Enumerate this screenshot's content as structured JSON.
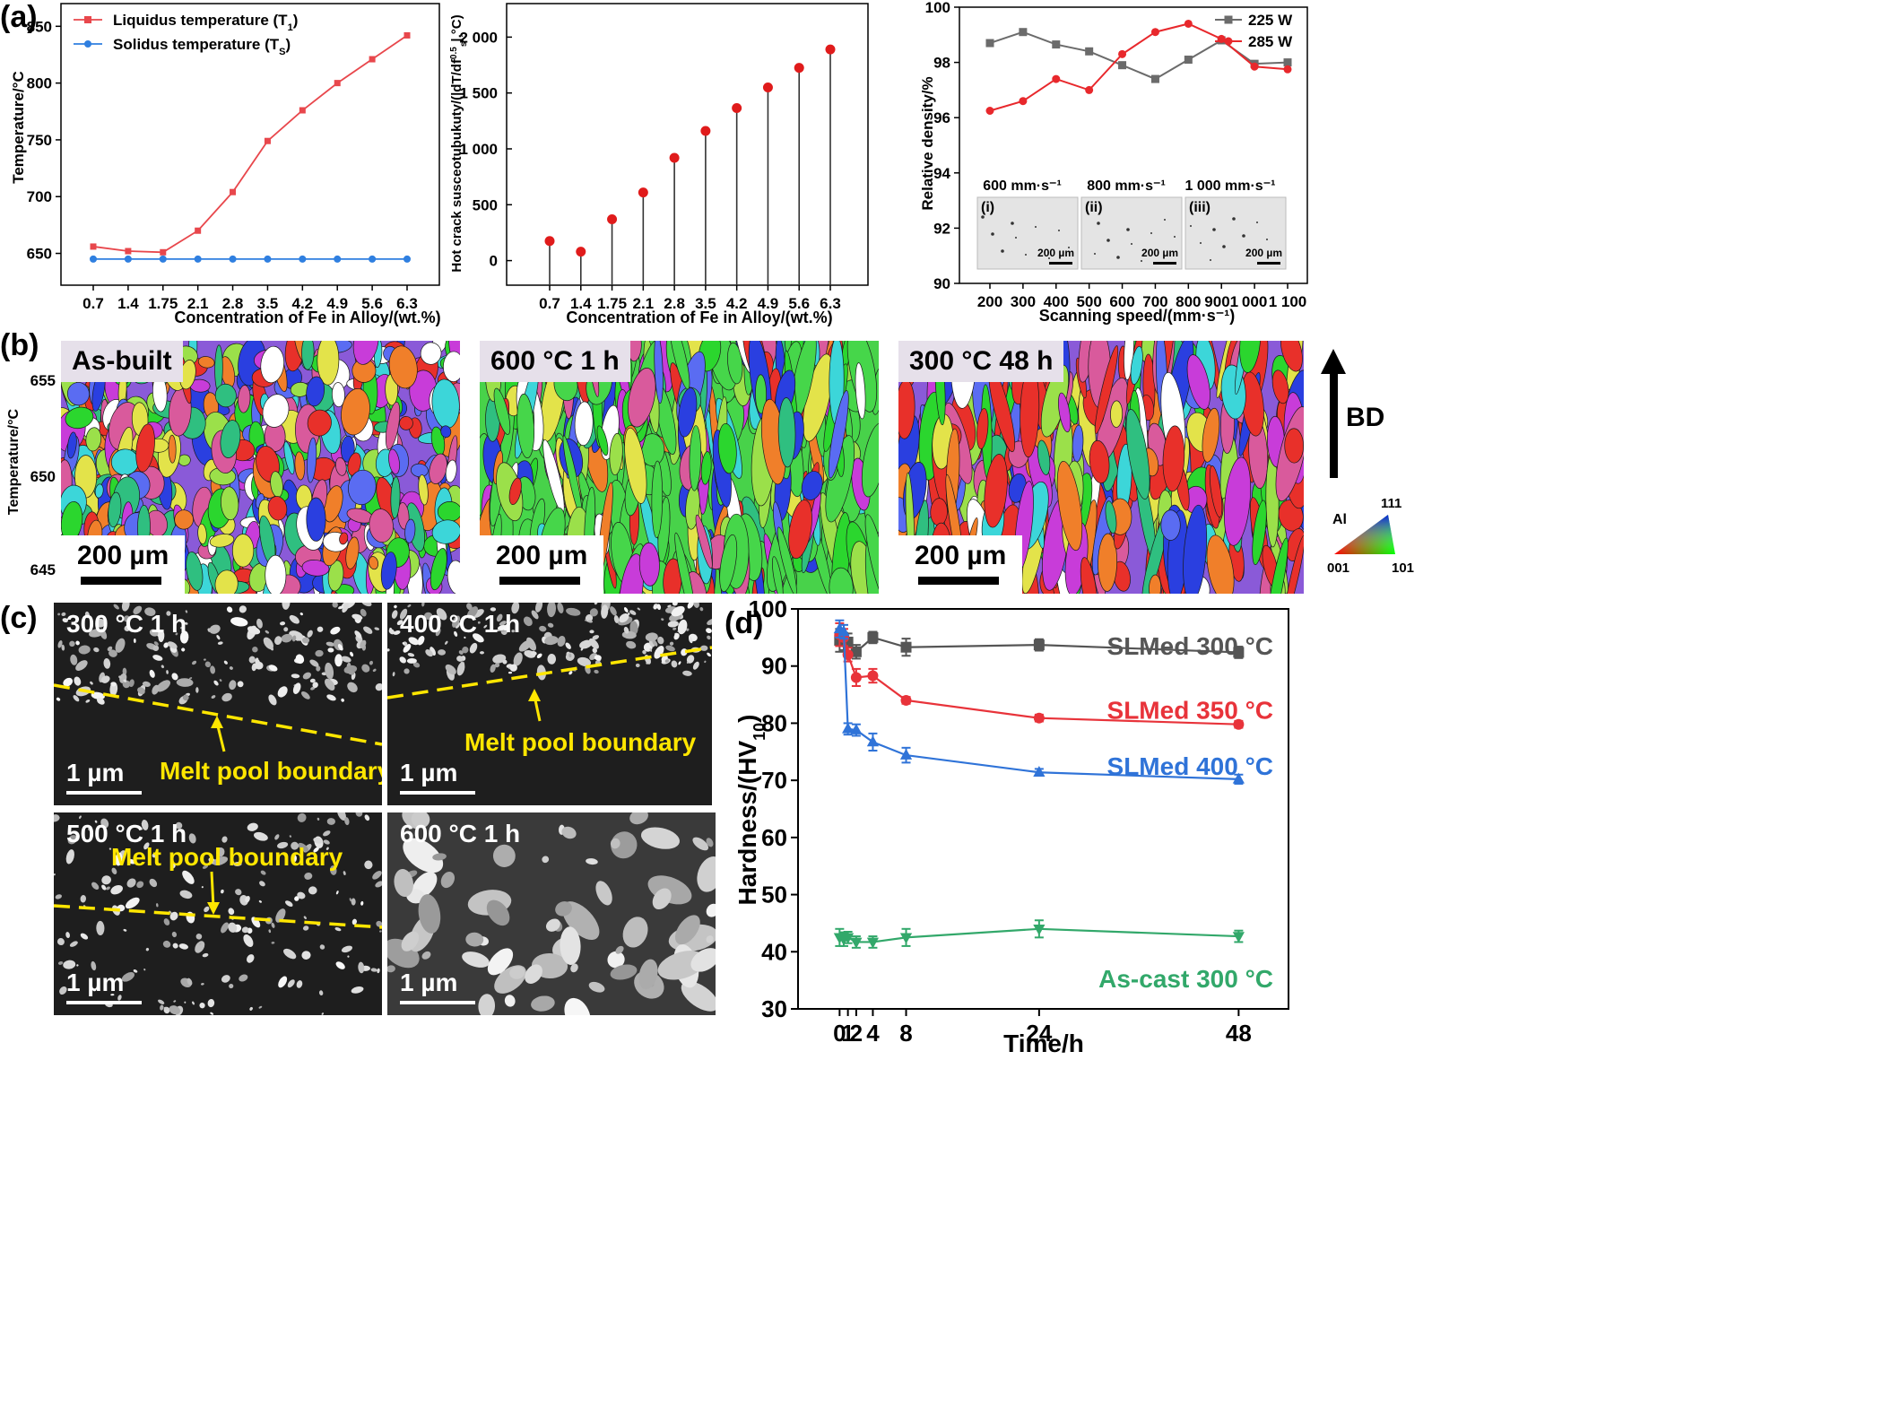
{
  "panels": {
    "a": "(a)",
    "b": "(b)",
    "c": "(c)",
    "d": "(d)"
  },
  "chart_data": [
    {
      "type": "line",
      "xlabel": "Concentration of Fe in Alloy/(wt.%)",
      "ylabel": "Temperature/°C",
      "categories": [
        "0.7",
        "1.4",
        "1.75",
        "2.1",
        "2.8",
        "3.5",
        "4.2",
        "4.9",
        "5.6",
        "6.3"
      ],
      "ylim": [
        622,
        870
      ],
      "yticks": [
        "650",
        "700",
        "750",
        "800",
        "850"
      ],
      "legend_position": "top-left",
      "series": [
        {
          "name": "Liquidus temperature (T",
          "sub": "1",
          "close": ")",
          "color": "#e8474c",
          "values": [
            656,
            652,
            651,
            670,
            704,
            749,
            776,
            800,
            821,
            842
          ]
        },
        {
          "name": "Solidus temperature (T",
          "sub": "S",
          "close": ")",
          "color": "#2f7fe0",
          "values": [
            645,
            645,
            645,
            645,
            645,
            645,
            645,
            645,
            645,
            645
          ]
        }
      ]
    },
    {
      "type": "stem",
      "xlabel": "Concentration of Fe in Alloy/(wt.%)",
      "ylabel": "Hot crack susceotubukuty/(|dT/df",
      "ylabel_sup": "0.5",
      "ylabel_sub": "s",
      "ylabel_end": "|,°C)",
      "categories": [
        "0.7",
        "1.4",
        "1.75",
        "2.1",
        "2.8",
        "3.5",
        "4.2",
        "4.9",
        "5.6",
        "6.3"
      ],
      "values": [
        175,
        80,
        370,
        610,
        920,
        1160,
        1365,
        1550,
        1725,
        1890
      ],
      "ylim": [
        -220,
        2300
      ],
      "yticks": [
        "0",
        "500",
        "1 000",
        "1 500",
        "2 000"
      ],
      "color": "#e01b1b"
    },
    {
      "type": "line",
      "xlabel": "Scanning speed/(mm·s⁻¹)",
      "ylabel": "Relative density/%",
      "x_ticklabels": [
        "200",
        "300",
        "400",
        "500",
        "600",
        "700",
        "800",
        "9001",
        "000",
        "1 100"
      ],
      "ylim": [
        90,
        100
      ],
      "yticks": [
        "90",
        "92",
        "94",
        "96",
        "98",
        "100"
      ],
      "legend_position": "top-right",
      "series": [
        {
          "name": "225 W",
          "color": "#6b6b6b",
          "marker": "square",
          "x": [
            200,
            300,
            400,
            500,
            600,
            700,
            800,
            900,
            1000,
            1100
          ],
          "values": [
            98.7,
            99.1,
            98.65,
            98.4,
            97.9,
            97.4,
            98.1,
            98.8,
            97.95,
            98.0
          ]
        },
        {
          "name": "285 W",
          "color": "#e8282c",
          "marker": "circle",
          "x": [
            200,
            300,
            400,
            500,
            600,
            700,
            800,
            900,
            1000,
            1100
          ],
          "values": [
            96.25,
            96.6,
            97.4,
            97.0,
            98.3,
            99.1,
            99.4,
            98.85,
            97.85,
            97.75
          ]
        }
      ],
      "insets": [
        {
          "title": "600 mm·s⁻¹",
          "label": "(i)",
          "scale": "200 µm"
        },
        {
          "title": "800 mm·s⁻¹",
          "label": "(ii)",
          "scale": "200 µm"
        },
        {
          "title": "1 000 mm·s⁻¹",
          "label": "(iii)",
          "scale": "200 µm"
        }
      ]
    },
    {
      "type": "line",
      "xlabel": "Time/h",
      "ylabel": "Hardness/(HV",
      "ylabel_sub": "10",
      "ylabel_end": ")",
      "x_ticklabels": [
        "0",
        "1",
        "2",
        "4",
        "8",
        "24",
        "48"
      ],
      "x_tickvalues": [
        0,
        1,
        2,
        4,
        8,
        24,
        48
      ],
      "xlim": [
        -5,
        54
      ],
      "ylim": [
        30,
        100
      ],
      "yticks": [
        "30",
        "40",
        "50",
        "60",
        "70",
        "80",
        "90",
        "100"
      ],
      "series": [
        {
          "name": "SLMed 300 °C",
          "color": "#555555",
          "marker": "square",
          "x": [
            0,
            0.5,
            1,
            2,
            4,
            8,
            24,
            48
          ],
          "values": [
            94.5,
            94.3,
            94.2,
            92.5,
            95.0,
            93.3,
            93.7,
            92.4
          ],
          "err": [
            2.0,
            1.5,
            1.5,
            1.2,
            1.0,
            1.5,
            1.0,
            1.0
          ]
        },
        {
          "name": "SLMed 350 °C",
          "color": "#e8333a",
          "marker": "circle",
          "x": [
            0,
            0.5,
            1,
            2,
            4,
            8,
            24,
            48
          ],
          "values": [
            95.5,
            95.0,
            92.0,
            88.0,
            88.3,
            84.0,
            80.9,
            79.8
          ],
          "err": [
            2.0,
            1.5,
            1.2,
            1.5,
            1.2,
            0.6,
            0.6,
            0.6
          ]
        },
        {
          "name": "SLMed 400 °C",
          "color": "#2f73d8",
          "marker": "triangle-up",
          "x": [
            0,
            0.5,
            1,
            2,
            4,
            8,
            24,
            48
          ],
          "values": [
            96.5,
            96.0,
            79.0,
            78.8,
            76.7,
            74.4,
            71.4,
            70.2
          ],
          "err": [
            1.5,
            1.2,
            1.0,
            1.0,
            1.5,
            1.3,
            0.6,
            0.8
          ]
        },
        {
          "name": "As-cast 300 °C",
          "color": "#32a86a",
          "marker": "triangle-down",
          "x": [
            0,
            0.5,
            1,
            2,
            4,
            8,
            24,
            48
          ],
          "values": [
            42.5,
            42.2,
            42.5,
            41.7,
            41.7,
            42.5,
            44.0,
            42.7
          ],
          "err": [
            1.5,
            1.2,
            1.0,
            1.0,
            1.0,
            1.5,
            1.5,
            1.0
          ]
        }
      ]
    }
  ],
  "ebsd": {
    "axis_label": "Temperature/°C",
    "axis_ticks": [
      "655",
      "650",
      "645"
    ],
    "maps": [
      {
        "label": "As-built",
        "scale": "200 µm"
      },
      {
        "label": "600 °C 1 h",
        "scale": "200 µm"
      },
      {
        "label": "300 °C 48 h",
        "scale": "200 µm"
      }
    ],
    "bd_label": "BD",
    "ipf": {
      "material": "Al",
      "corner_111": "111",
      "corner_001": "001",
      "corner_101": "101"
    }
  },
  "sem": [
    {
      "label": "300 °C 1 h",
      "scale": "1 µm",
      "boundary": "Melt pool boundary"
    },
    {
      "label": "400 °C 1 h",
      "scale": "1 µm",
      "boundary": "Melt pool boundary"
    },
    {
      "label": "500 °C 1 h",
      "scale": "1 µm",
      "boundary": "Melt pool boundary"
    },
    {
      "label": "600 °C 1 h",
      "scale": "1 µm",
      "boundary": ""
    }
  ]
}
